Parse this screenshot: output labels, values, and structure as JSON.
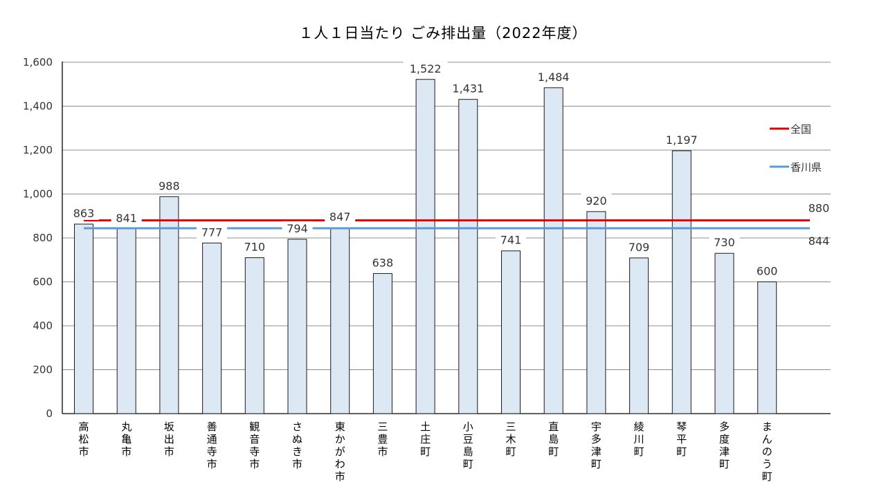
{
  "chart_data": {
    "type": "bar",
    "title": "１人１日当たり ごみ排出量（2022年度）",
    "categories": [
      "高松市",
      "丸亀市",
      "坂出市",
      "善通寺市",
      "観音寺市",
      "さぬき市",
      "東かがわ市",
      "三豊市",
      "土庄町",
      "小豆島町",
      "三木町",
      "直島町",
      "宇多津町",
      "綾川町",
      "琴平町",
      "多度津町",
      "まんのう町"
    ],
    "values": [
      863,
      841,
      988,
      777,
      710,
      794,
      847,
      638,
      1522,
      1431,
      741,
      1484,
      920,
      709,
      1197,
      730,
      600
    ],
    "value_labels": [
      "863",
      "841",
      "988",
      "777",
      "710",
      "794",
      "847",
      "638",
      "1,522",
      "1,431",
      "741",
      "1,484",
      "920",
      "709",
      "1,197",
      "730",
      "600"
    ],
    "reference_lines": [
      {
        "name": "全国",
        "value": 880,
        "label": "880",
        "color": "#e00000"
      },
      {
        "name": "香川県",
        "value": 844,
        "label": "844",
        "color": "#5b9bd5"
      }
    ],
    "ylim": [
      0,
      1600
    ],
    "yticks": [
      "0",
      "200",
      "400",
      "600",
      "800",
      "1,000",
      "1,200",
      "1,400",
      "1,600"
    ],
    "grid": true,
    "legend_position": "right",
    "bar_fill": "#dde8f5",
    "bar_stroke": "#1a1a1a"
  }
}
